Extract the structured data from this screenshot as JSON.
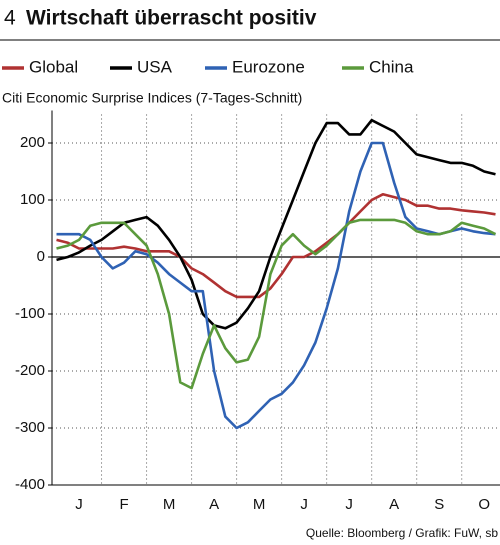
{
  "chart_data": {
    "type": "line",
    "figure_number": "4",
    "title": "Wirtschaft überrascht positiv",
    "subtitle": "Citi Economic Surprise Indices (7-Tages-Schnitt)",
    "source": "Quelle: Bloomberg / Grafik: FuW, sb",
    "x": [
      0,
      0.25,
      0.5,
      0.75,
      1,
      1.25,
      1.5,
      1.75,
      2,
      2.25,
      2.5,
      2.75,
      3,
      3.25,
      3.5,
      3.75,
      4,
      4.25,
      4.5,
      4.75,
      5,
      5.25,
      5.5,
      5.75,
      6,
      6.25,
      6.5,
      6.75,
      7,
      7.25,
      7.5,
      7.75,
      8,
      8.25,
      8.5,
      8.75,
      9,
      9.25,
      9.5,
      9.75
    ],
    "series": [
      {
        "name": "Global",
        "color": "#b03232",
        "values": [
          30,
          25,
          15,
          15,
          15,
          15,
          18,
          15,
          10,
          10,
          10,
          0,
          -20,
          -30,
          -45,
          -60,
          -70,
          -70,
          -70,
          -55,
          -30,
          0,
          0,
          10,
          25,
          40,
          60,
          80,
          100,
          110,
          105,
          100,
          90,
          90,
          85,
          85,
          82,
          80,
          78,
          75
        ]
      },
      {
        "name": "USA",
        "color": "#000000",
        "values": [
          -5,
          0,
          8,
          20,
          30,
          45,
          60,
          65,
          70,
          55,
          30,
          0,
          -40,
          -100,
          -120,
          -125,
          -115,
          -90,
          -60,
          0,
          50,
          100,
          150,
          200,
          235,
          235,
          215,
          215,
          240,
          230,
          220,
          200,
          180,
          175,
          170,
          165,
          165,
          160,
          150,
          145
        ]
      },
      {
        "name": "Eurozone",
        "color": "#2f62b4",
        "values": [
          40,
          40,
          40,
          30,
          0,
          -20,
          -10,
          10,
          5,
          -10,
          -30,
          -45,
          -60,
          -60,
          -200,
          -280,
          -300,
          -290,
          -270,
          -250,
          -240,
          -220,
          -190,
          -150,
          -90,
          -20,
          80,
          150,
          200,
          200,
          130,
          70,
          50,
          45,
          40,
          45,
          50,
          45,
          42,
          40
        ]
      },
      {
        "name": "China",
        "color": "#5b9a3c",
        "values": [
          15,
          20,
          30,
          55,
          60,
          60,
          60,
          40,
          20,
          -30,
          -100,
          -220,
          -230,
          -170,
          -120,
          -160,
          -185,
          -180,
          -140,
          -30,
          20,
          40,
          20,
          5,
          20,
          40,
          60,
          65,
          65,
          65,
          65,
          60,
          45,
          40,
          40,
          45,
          60,
          55,
          50,
          40
        ]
      }
    ],
    "xlim": [
      -0.1,
      9.85
    ],
    "xticks": [
      {
        "value": 0.5,
        "label": "J"
      },
      {
        "value": 1.5,
        "label": "F"
      },
      {
        "value": 2.5,
        "label": "M"
      },
      {
        "value": 3.5,
        "label": "A"
      },
      {
        "value": 4.5,
        "label": "M"
      },
      {
        "value": 5.5,
        "label": "J"
      },
      {
        "value": 6.5,
        "label": "J"
      },
      {
        "value": 7.5,
        "label": "A"
      },
      {
        "value": 8.5,
        "label": "S"
      },
      {
        "value": 9.5,
        "label": "O"
      }
    ],
    "xgrid": [
      1,
      2,
      3,
      4,
      5,
      6,
      7,
      8,
      9
    ],
    "ylim": [
      -400,
      250
    ],
    "yticks": [
      -400,
      -300,
      -200,
      -100,
      0,
      100,
      200
    ],
    "grid": true
  }
}
